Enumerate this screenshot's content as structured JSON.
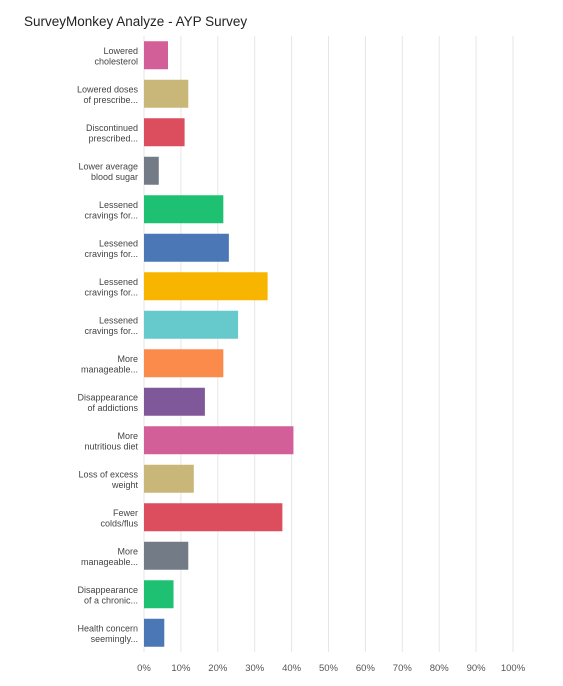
{
  "chart_data": {
    "type": "bar",
    "orientation": "horizontal",
    "title": "SurveyMonkey Analyze - AYP Survey",
    "categories": [
      [
        "Lowered",
        "cholesterol"
      ],
      [
        "Lowered doses",
        "of prescribe..."
      ],
      [
        "Discontinued",
        "prescribed..."
      ],
      [
        "Lower average",
        "blood sugar"
      ],
      [
        "Lessened",
        "cravings for..."
      ],
      [
        "Lessened",
        "cravings for..."
      ],
      [
        "Lessened",
        "cravings for..."
      ],
      [
        "Lessened",
        "cravings for..."
      ],
      [
        "More",
        "manageable..."
      ],
      [
        "Disappearance",
        "of addictions"
      ],
      [
        "More",
        "nutritious diet"
      ],
      [
        "Loss of excess",
        "weight"
      ],
      [
        "Fewer",
        "colds/flus"
      ],
      [
        "More",
        "manageable..."
      ],
      [
        "Disappearance",
        "of a chronic..."
      ],
      [
        "Health concern",
        "seemingly..."
      ]
    ],
    "values": [
      6.5,
      12,
      11,
      4,
      21.5,
      23,
      33.5,
      25.5,
      21.5,
      16.5,
      40.5,
      13.5,
      37.5,
      12,
      8,
      5.5
    ],
    "colors": [
      "#d25f97",
      "#c9b77a",
      "#dc4d5e",
      "#737b87",
      "#1ec072",
      "#4c77b6",
      "#f7b500",
      "#66c9cb",
      "#fb8b4a",
      "#7e5898",
      "#d25f97",
      "#c9b77a",
      "#dc4d5e",
      "#737b87",
      "#1ec072",
      "#4c77b6"
    ],
    "xlim": [
      0,
      100
    ],
    "xticks": [
      "0%",
      "10%",
      "20%",
      "30%",
      "40%",
      "50%",
      "60%",
      "70%",
      "80%",
      "90%",
      "100%"
    ],
    "grid": true,
    "xlabel": "",
    "ylabel": ""
  }
}
